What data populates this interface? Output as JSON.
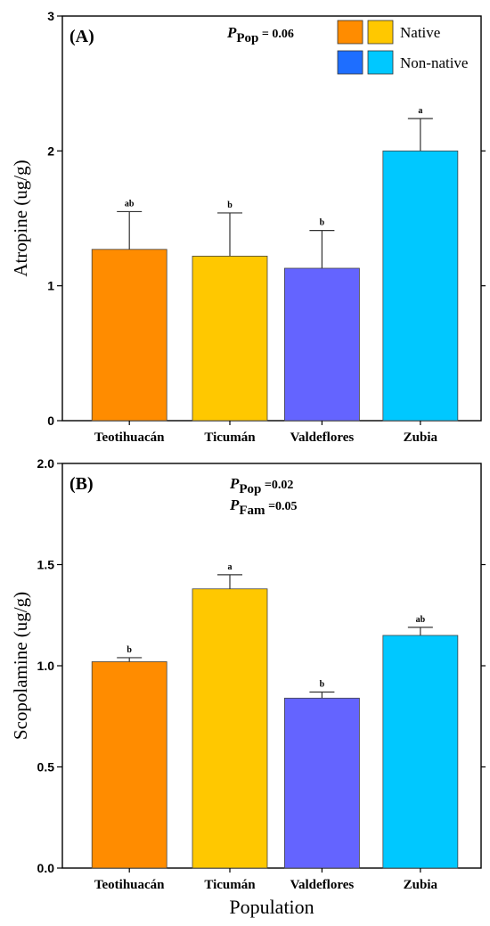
{
  "chart_data": [
    {
      "type": "bar",
      "panel_label": "(A)",
      "ylabel": "Atropine (ug/g)",
      "xlabel": "",
      "ylim": [
        0,
        3
      ],
      "yticks": [
        "0",
        "1",
        "2",
        "3"
      ],
      "categories": [
        "Teotihuacán",
        "Ticumán",
        "Valdeflores",
        "Zubia"
      ],
      "values": [
        1.27,
        1.22,
        1.13,
        2.0
      ],
      "errors": [
        0.28,
        0.32,
        0.28,
        0.24
      ],
      "significance": [
        "ab",
        "b",
        "b",
        "a"
      ],
      "bar_colors": [
        "#ff8c00",
        "#ffc800",
        "#6464ff",
        "#00c8ff"
      ],
      "p_values": [
        {
          "p": "P",
          "sub": "Pop",
          "text": " =  0.06"
        }
      ],
      "legend": [
        {
          "label": "Native",
          "colors": [
            "#ff8c00",
            "#ffc800"
          ]
        },
        {
          "label": "Non-native",
          "colors": [
            "#1e6eff",
            "#00c8ff"
          ]
        }
      ]
    },
    {
      "type": "bar",
      "panel_label": "(B)",
      "ylabel": "Scopolamine (ug/g)",
      "xlabel": "Population",
      "ylim": [
        0,
        2
      ],
      "yticks": [
        "0.0",
        "0.5",
        "1.0",
        "1.5",
        "2.0"
      ],
      "categories": [
        "Teotihuacán",
        "Ticumán",
        "Valdeflores",
        "Zubia"
      ],
      "values": [
        1.02,
        1.38,
        0.84,
        1.15
      ],
      "errors": [
        0.02,
        0.07,
        0.03,
        0.04
      ],
      "significance": [
        "b",
        "a",
        "b",
        "ab"
      ],
      "bar_colors": [
        "#ff8c00",
        "#ffc800",
        "#6464ff",
        "#00c8ff"
      ],
      "p_values": [
        {
          "p": "P",
          "sub": "Pop",
          "text": " =0.02"
        },
        {
          "p": "P",
          "sub": "Fam",
          "text": " =0.05"
        }
      ]
    }
  ]
}
